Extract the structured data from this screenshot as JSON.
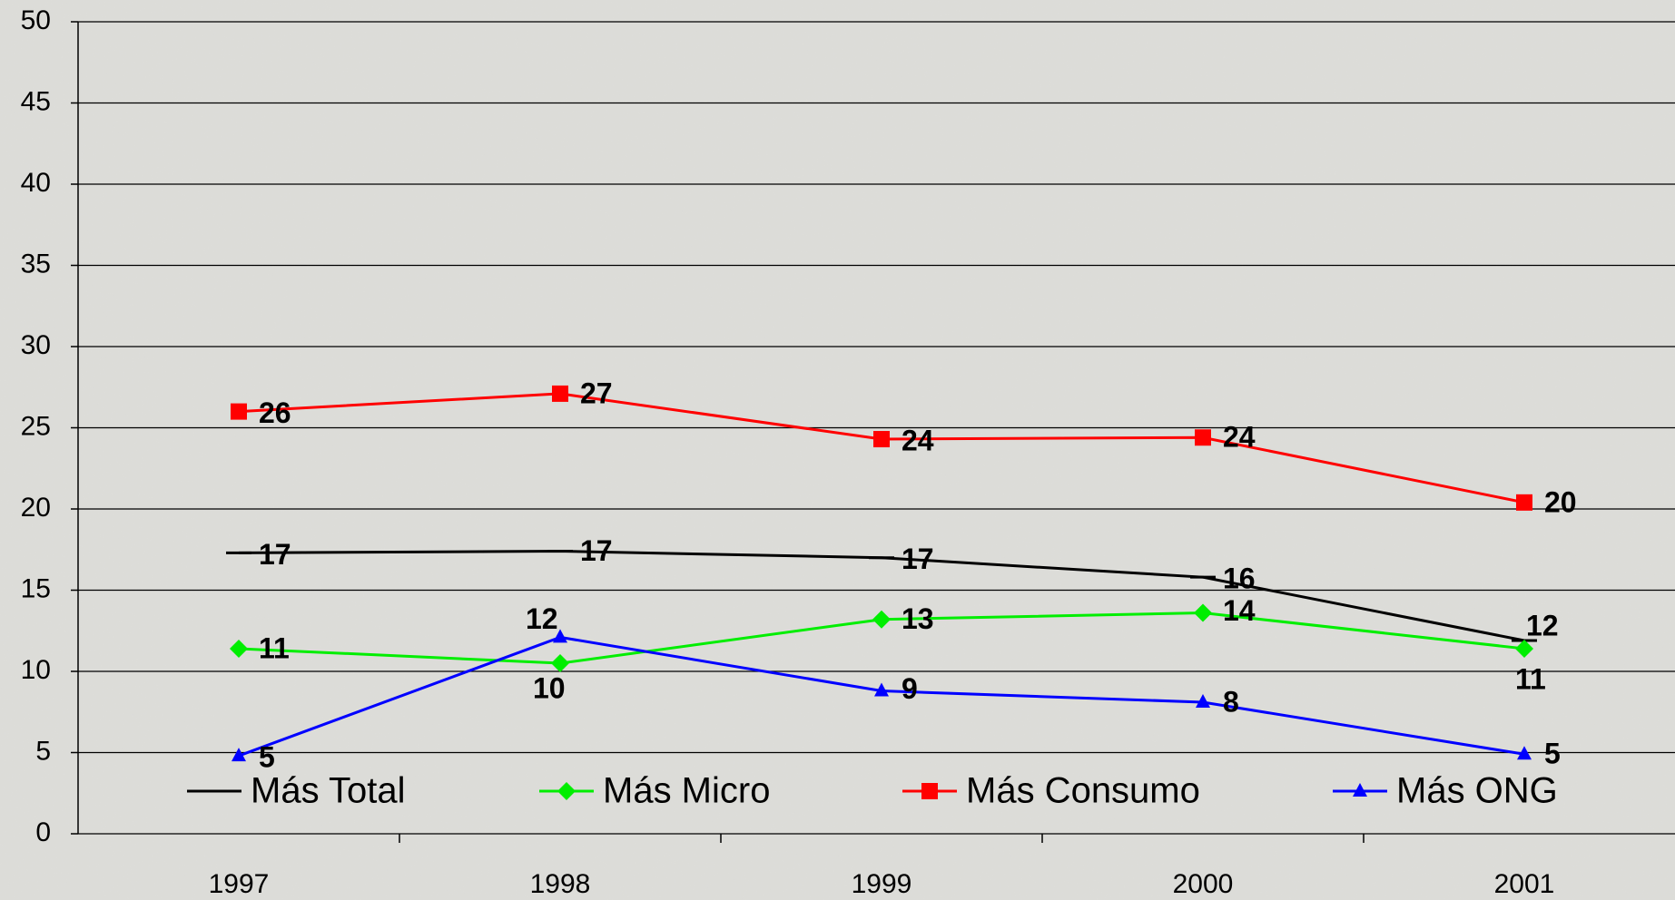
{
  "chart_data": {
    "type": "line",
    "categories": [
      "1997",
      "1998",
      "1999",
      "2000",
      "2001"
    ],
    "series": [
      {
        "name": "Más Total",
        "color": "#000000",
        "marker": "dash",
        "values": [
          17.3,
          17.4,
          17.0,
          15.8,
          11.9
        ],
        "value_labels": [
          "17",
          "17",
          "17",
          "16",
          "12"
        ]
      },
      {
        "name": "Más Micro",
        "color": "#00ee00",
        "marker": "diamond",
        "values": [
          11.4,
          10.5,
          13.2,
          13.6,
          11.4
        ],
        "value_labels": [
          "11",
          "10",
          "13",
          "14",
          "11"
        ]
      },
      {
        "name": "Más Consumo",
        "color": "#ff0000",
        "marker": "square",
        "values": [
          26.0,
          27.1,
          24.3,
          24.4,
          20.4
        ],
        "value_labels": [
          "26",
          "27",
          "24",
          "24",
          "20"
        ]
      },
      {
        "name": "Más ONG",
        "color": "#0000ff",
        "marker": "triangle",
        "values": [
          4.8,
          12.1,
          8.8,
          8.1,
          4.9
        ],
        "value_labels": [
          "5",
          "12",
          "9",
          "8",
          "5"
        ]
      }
    ],
    "ylim": [
      0,
      50
    ],
    "yticks": [
      0,
      5,
      10,
      15,
      20,
      25,
      30,
      35,
      40,
      45,
      50
    ],
    "grid": true,
    "legend": "bottom"
  }
}
